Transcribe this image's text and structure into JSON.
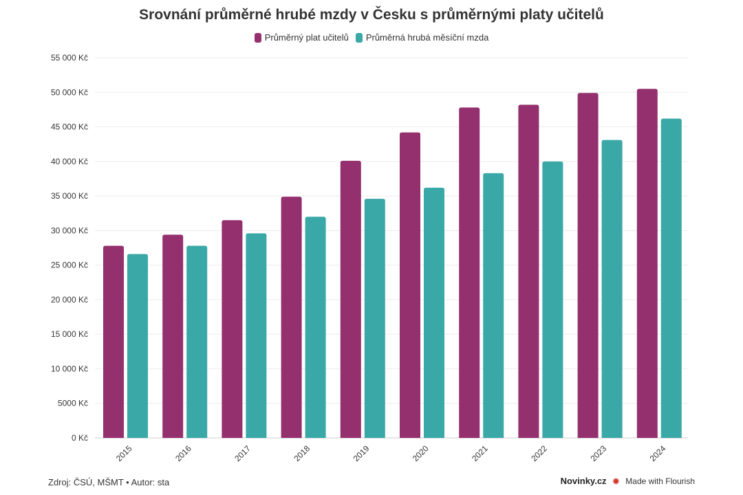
{
  "chart_data": {
    "type": "bar",
    "title": "Srovnání průměrné hrubé mzdy v Česku s průměrnými platy učitelů",
    "categories": [
      "2015",
      "2016",
      "2017",
      "2018",
      "2019",
      "2020",
      "2021",
      "2022",
      "2023",
      "2024"
    ],
    "series": [
      {
        "name": "Průměrný plat učitelů",
        "color": "#94306e",
        "values": [
          27800,
          29400,
          31500,
          34900,
          40100,
          44200,
          47800,
          48200,
          49900,
          50500
        ]
      },
      {
        "name": "Průměrná hrubá měsíční mzda",
        "color": "#3aa8a6",
        "values": [
          26600,
          27800,
          29600,
          32000,
          34600,
          36200,
          38300,
          40000,
          43100,
          46200
        ]
      }
    ],
    "ylim": [
      0,
      55000
    ],
    "yticks": [
      0,
      5000,
      10000,
      15000,
      20000,
      25000,
      30000,
      35000,
      40000,
      45000,
      50000,
      55000
    ],
    "ytick_labels": [
      "0 Kč",
      "5000 Kč",
      "10 000 Kč",
      "15 000 Kč",
      "20 000 Kč",
      "25 000 Kč",
      "30 000 Kč",
      "35 000 Kč",
      "40 000 Kč",
      "45 000 Kč",
      "50 000 Kč",
      "55 000 Kč"
    ],
    "grid": true,
    "legend_position": "top-center"
  },
  "footer": {
    "source": "Zdroj: ČSÚ, MŠMT • Autor: sta",
    "brand": "Novinky.cz",
    "made_with": "Made with Flourish",
    "made_with_icon": "flourish-star-icon"
  }
}
